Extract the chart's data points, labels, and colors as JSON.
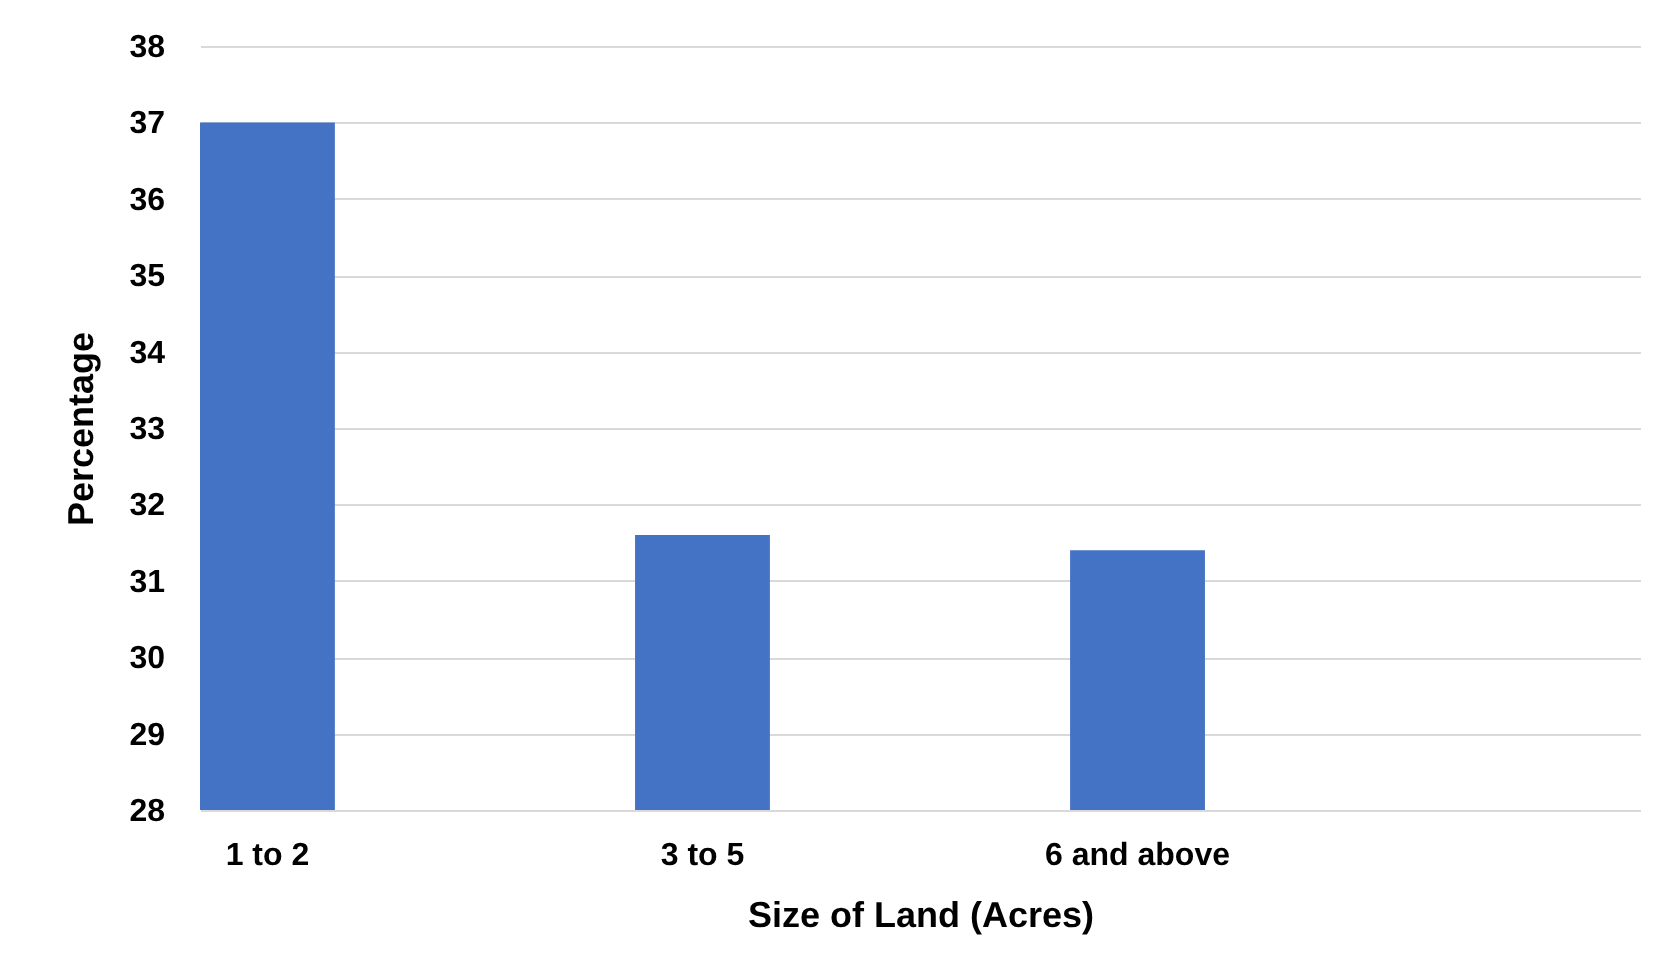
{
  "chart_data": {
    "type": "bar",
    "xlabel": "Size of Land (Acres)",
    "ylabel": "Percentage",
    "categories": [
      "1 to 2",
      "3 to 5",
      "6 and above",
      null
    ],
    "values": [
      37,
      31.6,
      31.4,
      null
    ],
    "color": "#4472c4",
    "ylim": [
      28,
      38
    ],
    "yticks": [
      28,
      29,
      30,
      31,
      32,
      33,
      34,
      35,
      36,
      37,
      38
    ],
    "grid": "y"
  }
}
